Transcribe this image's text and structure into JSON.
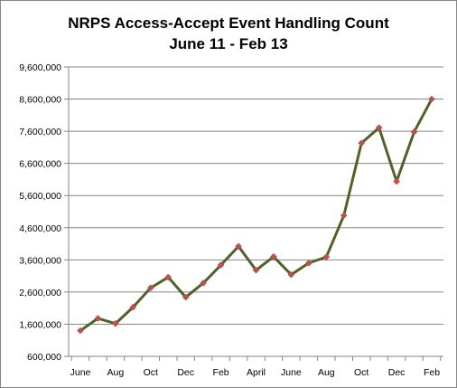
{
  "chart_data": {
    "type": "line",
    "title": "NRPS Access-Accept Event Handling Count",
    "subtitle": "June 11 - Feb 13",
    "xlabel": "",
    "ylabel": "",
    "ylim": [
      600000,
      9600000
    ],
    "y_ticks": [
      600000,
      1600000,
      2600000,
      3600000,
      4600000,
      5600000,
      6600000,
      7600000,
      8600000,
      9600000
    ],
    "y_tick_labels": [
      "600,000",
      "1,600,000",
      "2,600,000",
      "3,600,000",
      "4,600,000",
      "5,600,000",
      "6,600,000",
      "7,600,000",
      "8,600,000",
      "9,600,000"
    ],
    "grid": true,
    "legend": "none",
    "x": [
      "Jun 2011",
      "Jul 2011",
      "Aug 2011",
      "Sep 2011",
      "Oct 2011",
      "Nov 2011",
      "Dec 2011",
      "Jan 2012",
      "Feb 2012",
      "Mar 2012",
      "Apr 2012",
      "May 2012",
      "Jun 2012",
      "Jul 2012",
      "Aug 2012",
      "Sep 2012",
      "Oct 2012",
      "Nov 2012",
      "Dec 2012",
      "Jan 2013",
      "Feb 2013"
    ],
    "x_tick_labels": [
      "June",
      "",
      "Aug",
      "",
      "Oct",
      "",
      "Dec",
      "",
      "Feb",
      "",
      "April",
      "",
      "June",
      "",
      "Aug",
      "",
      "Oct",
      "",
      "Dec",
      "",
      "Feb"
    ],
    "series": [
      {
        "values": [
          1400000,
          1780000,
          1620000,
          2130000,
          2730000,
          3060000,
          2440000,
          2880000,
          3440000,
          4020000,
          3280000,
          3700000,
          3140000,
          3500000,
          3690000,
          4980000,
          7230000,
          7710000,
          6040000,
          7580000,
          8600000
        ],
        "line_color": "#4f6228",
        "marker_color": "#c0504d"
      }
    ]
  }
}
